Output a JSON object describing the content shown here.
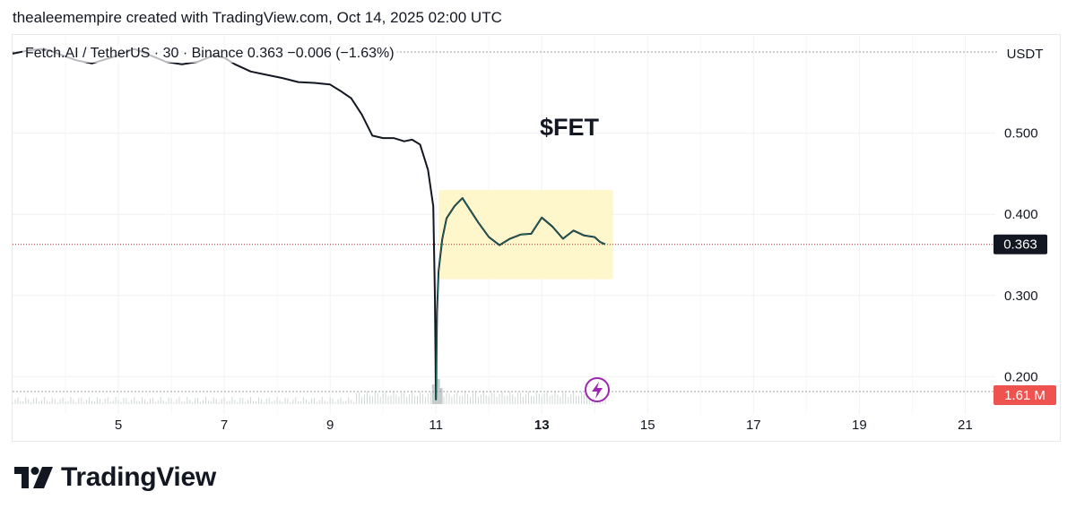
{
  "header": {
    "credit": "thealeemempire created with TradingView.com, Oct 14, 2025 02:00 UTC"
  },
  "legend": {
    "pair": "Fetch.AI / TetherUS",
    "interval": "30",
    "exchange": "Binance",
    "price": "0.363",
    "change": "−0.006 (−1.63%)",
    "separator": "·"
  },
  "currency_label": "USDT",
  "brand": {
    "name": "TradingView"
  },
  "colors": {
    "candle": "#131722",
    "recovery_candle": "#26a69a",
    "highlight_box": "#fff7cc",
    "price_line": "#b02a2a",
    "volume_badge": "#ef5350",
    "lightning": "#9c27b0"
  },
  "chart_data": {
    "type": "line",
    "title": "",
    "annotation": "$FET",
    "xlabel": "",
    "ylabel": "",
    "x_ticks": [
      {
        "label": "5",
        "value": 5,
        "bold": false
      },
      {
        "label": "7",
        "value": 7,
        "bold": false
      },
      {
        "label": "9",
        "value": 9,
        "bold": false
      },
      {
        "label": "11",
        "value": 11,
        "bold": false
      },
      {
        "label": "13",
        "value": 13,
        "bold": true
      },
      {
        "label": "15",
        "value": 15,
        "bold": false
      },
      {
        "label": "17",
        "value": 17,
        "bold": false
      },
      {
        "label": "19",
        "value": 19,
        "bold": false
      },
      {
        "label": "21",
        "value": 21,
        "bold": false
      }
    ],
    "y_ticks": [
      {
        "label": "0.500",
        "value": 0.5
      },
      {
        "label": "0.400",
        "value": 0.4
      },
      {
        "label": "0.300",
        "value": 0.3
      },
      {
        "label": "0.200",
        "value": 0.2
      }
    ],
    "xlim": [
      3.0,
      21.4
    ],
    "ylim": [
      0.165,
      0.62
    ],
    "last_price": 0.363,
    "last_price_label": "0.363",
    "volume_label": "1.61 M",
    "highlight_range": {
      "x": [
        11.05,
        14.35
      ],
      "y": [
        0.32,
        0.43
      ]
    },
    "series": [
      {
        "values": [
          [
            3.0,
            0.598
          ],
          [
            3.3,
            0.602
          ],
          [
            3.6,
            0.604
          ],
          [
            3.9,
            0.597
          ],
          [
            4.2,
            0.59
          ],
          [
            4.5,
            0.586
          ],
          [
            4.8,
            0.592
          ],
          [
            5.0,
            0.596
          ],
          [
            5.3,
            0.604
          ],
          [
            5.6,
            0.596
          ],
          [
            5.9,
            0.588
          ],
          [
            6.2,
            0.585
          ],
          [
            6.5,
            0.588
          ],
          [
            6.8,
            0.596
          ],
          [
            7.0,
            0.593
          ],
          [
            7.2,
            0.585
          ],
          [
            7.5,
            0.576
          ],
          [
            7.8,
            0.572
          ],
          [
            8.1,
            0.568
          ],
          [
            8.4,
            0.563
          ],
          [
            8.7,
            0.562
          ],
          [
            9.0,
            0.56
          ],
          [
            9.2,
            0.552
          ],
          [
            9.4,
            0.543
          ],
          [
            9.6,
            0.523
          ],
          [
            9.8,
            0.497
          ],
          [
            10.0,
            0.494
          ],
          [
            10.2,
            0.494
          ],
          [
            10.4,
            0.49
          ],
          [
            10.55,
            0.492
          ],
          [
            10.7,
            0.486
          ],
          [
            10.85,
            0.455
          ],
          [
            10.95,
            0.41
          ],
          [
            10.98,
            0.3
          ],
          [
            11.0,
            0.172
          ],
          [
            11.02,
            0.28
          ],
          [
            11.05,
            0.33
          ],
          [
            11.12,
            0.37
          ],
          [
            11.2,
            0.395
          ],
          [
            11.35,
            0.41
          ],
          [
            11.5,
            0.42
          ],
          [
            11.6,
            0.41
          ],
          [
            11.8,
            0.39
          ],
          [
            12.0,
            0.372
          ],
          [
            12.2,
            0.362
          ],
          [
            12.4,
            0.37
          ],
          [
            12.6,
            0.375
          ],
          [
            12.8,
            0.376
          ],
          [
            13.0,
            0.396
          ],
          [
            13.2,
            0.385
          ],
          [
            13.4,
            0.37
          ],
          [
            13.6,
            0.38
          ],
          [
            13.8,
            0.374
          ],
          [
            14.0,
            0.372
          ],
          [
            14.1,
            0.366
          ],
          [
            14.2,
            0.363
          ]
        ]
      }
    ],
    "volume": [
      {
        "x": 10.95,
        "v": 0.55
      },
      {
        "x": 11.0,
        "v": 1.0
      },
      {
        "x": 11.05,
        "v": 0.7
      },
      {
        "x": 11.1,
        "v": 0.45
      }
    ]
  }
}
